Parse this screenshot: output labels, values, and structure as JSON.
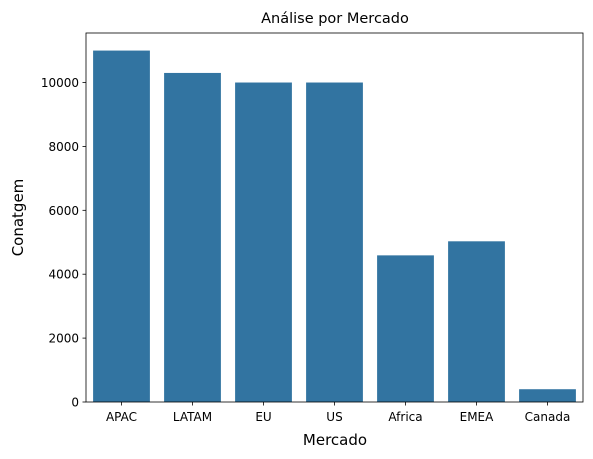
{
  "chart_data": {
    "type": "bar",
    "title": "Análise por Mercado",
    "xlabel": "Mercado",
    "ylabel": "Conatgem",
    "categories": [
      "APAC",
      "LATAM",
      "EU",
      "US",
      "Africa",
      "EMEA",
      "Canada"
    ],
    "values": [
      11000,
      10300,
      10000,
      10000,
      4590,
      5030,
      400
    ],
    "ylim": [
      0,
      11550
    ],
    "yticks": [
      0,
      2000,
      4000,
      6000,
      8000,
      10000
    ],
    "ytick_labels": [
      "0",
      "2000",
      "4000",
      "6000",
      "8000",
      "10000"
    ],
    "bar_color": "#3274a1",
    "grid": false,
    "legend": "none"
  }
}
